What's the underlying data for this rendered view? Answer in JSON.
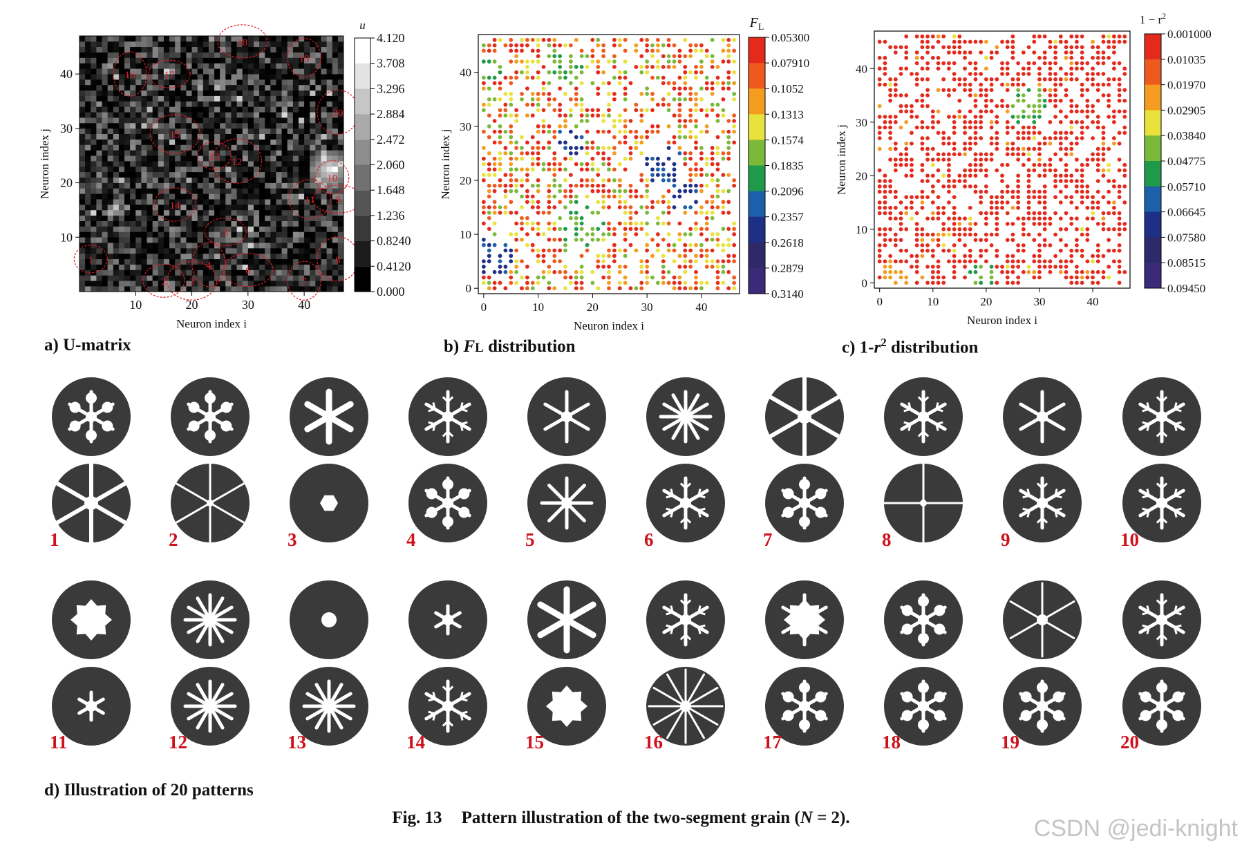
{
  "captions": {
    "a_prefix": "a) U-matrix",
    "b_prefix": "b) ",
    "b_sym": "F",
    "b_sub": "L",
    "b_suffix": " distribution",
    "c_prefix": "c) 1-",
    "c_sym": "r",
    "c_sup": "2",
    "c_suffix": " distribution",
    "d": "d) Illustration of 20 patterns",
    "figure_label": "Fig. 13",
    "figure_text_pre": "Pattern illustration of the two-segment grain (",
    "figure_text_sym": "N",
    "figure_text_post": " = 2)."
  },
  "watermark": "CSDN @jedi-knight",
  "colors": {
    "umatrix_boundary": "#e01b24",
    "pattern_fill": "#3a3a3a",
    "pattern_number": "#d0101a",
    "palette": [
      "#e32a1c",
      "#ee5a1e",
      "#f39c1f",
      "#e8e23a",
      "#7ab93a",
      "#1f9a4b",
      "#1c5faa",
      "#1e2f86",
      "#2e2a6a",
      "#3a2a78"
    ]
  },
  "chart_data": [
    {
      "type": "heatmap",
      "name": "U-matrix",
      "xlabel": "Neuron index i",
      "ylabel": "Neuron index j",
      "xticks": [
        10,
        20,
        30,
        40
      ],
      "yticks": [
        10,
        20,
        30,
        40
      ],
      "xlim": [
        0,
        47
      ],
      "ylim": [
        0,
        47
      ],
      "colorbar_title": "u",
      "colorbar_ticks": [
        "0.000",
        "0.4120",
        "0.8240",
        "1.236",
        "1.648",
        "2.060",
        "2.472",
        "2.884",
        "3.296",
        "3.708",
        "4.120"
      ],
      "colormap": "grayscale",
      "cluster_labels": [
        "1",
        "2",
        "3",
        "4",
        "5",
        "6",
        "7",
        "8",
        "9",
        "10",
        "11",
        "12",
        "13",
        "14",
        "15",
        "16",
        "17",
        "18",
        "19",
        "20"
      ],
      "cluster_centers": [
        [
          2,
          6
        ],
        [
          15,
          2
        ],
        [
          20,
          2
        ],
        [
          23,
          5
        ],
        [
          26,
          11
        ],
        [
          30,
          4
        ],
        [
          40,
          2
        ],
        [
          46,
          6
        ],
        [
          46,
          17
        ],
        [
          45,
          21
        ],
        [
          41,
          17
        ],
        [
          28,
          24
        ],
        [
          24,
          25
        ],
        [
          17,
          16
        ],
        [
          17,
          29
        ],
        [
          9,
          40
        ],
        [
          16,
          40
        ],
        [
          29,
          46
        ],
        [
          40,
          43
        ],
        [
          46,
          33
        ]
      ]
    },
    {
      "type": "scatter",
      "name": "FL distribution",
      "xlabel": "Neuron index i",
      "ylabel": "Neuron index j",
      "xticks": [
        0,
        10,
        20,
        30,
        40
      ],
      "yticks": [
        0,
        10,
        20,
        30,
        40
      ],
      "xlim": [
        -1,
        47
      ],
      "ylim": [
        -1,
        47
      ],
      "colorbar_title_sym": "F",
      "colorbar_title_sub": "L",
      "colorbar_ticks": [
        "0.05300",
        "0.07910",
        "0.1052",
        "0.1313",
        "0.1574",
        "0.1835",
        "0.2096",
        "0.2357",
        "0.2618",
        "0.2879",
        "0.3140"
      ],
      "vlim": [
        0.053,
        0.314
      ],
      "regions_high": [
        [
          [
            1,
            41
          ],
          3,
          "green"
        ],
        [
          [
            2,
            6
          ],
          4,
          "navy"
        ],
        [
          [
            16,
            27
          ],
          3,
          "navy"
        ],
        [
          [
            37,
            17
          ],
          3,
          "navy"
        ],
        [
          [
            33,
            23
          ],
          4,
          "navy"
        ],
        [
          [
            15,
            41
          ],
          4,
          "green"
        ],
        [
          [
            18,
            12
          ],
          5,
          "green"
        ]
      ]
    },
    {
      "type": "scatter",
      "name": "1-r2 distribution",
      "xlabel": "Neuron index i",
      "ylabel": "Neuron index j",
      "xticks": [
        0,
        10,
        20,
        30,
        40
      ],
      "yticks": [
        0,
        10,
        20,
        30,
        40
      ],
      "xlim": [
        -1,
        47
      ],
      "ylim": [
        -1,
        47
      ],
      "colorbar_title": "1 − r",
      "colorbar_title_sup": "2",
      "colorbar_ticks": [
        "0.001000",
        "0.01035",
        "0.01970",
        "0.02905",
        "0.03840",
        "0.04775",
        "0.05710",
        "0.06645",
        "0.07580",
        "0.08515",
        "0.09450"
      ],
      "vlim": [
        0.001,
        0.0945
      ],
      "regions_high": [
        [
          [
            28,
            33
          ],
          4,
          "green"
        ],
        [
          [
            19,
            1
          ],
          3,
          "green"
        ],
        [
          [
            3,
            1
          ],
          3,
          "orange"
        ]
      ]
    }
  ],
  "patterns": {
    "labels": [
      "1",
      "2",
      "3",
      "4",
      "5",
      "6",
      "7",
      "8",
      "9",
      "10",
      "11",
      "12",
      "13",
      "14",
      "15",
      "16",
      "17",
      "18",
      "19",
      "20"
    ],
    "top_shapes": [
      "holes6",
      "petal",
      "ray6wide",
      "branch6",
      "burst",
      "star12",
      "sectors",
      "branch6b",
      "star6",
      "branch6c",
      "gear",
      "ray12",
      "hole",
      "star6small",
      "bar6",
      "branch6",
      "octagon",
      "drops6",
      "lines6",
      "branch6"
    ],
    "bottom_shapes": [
      "sectors",
      "slits6",
      "hex",
      "dots6",
      "rays8",
      "branch6",
      "drops6",
      "slits4",
      "branch6",
      "branch6",
      "star6small",
      "ray12",
      "star12",
      "branch6",
      "gear",
      "lines12",
      "drops6",
      "drops6",
      "drops6",
      "diamond6"
    ]
  }
}
